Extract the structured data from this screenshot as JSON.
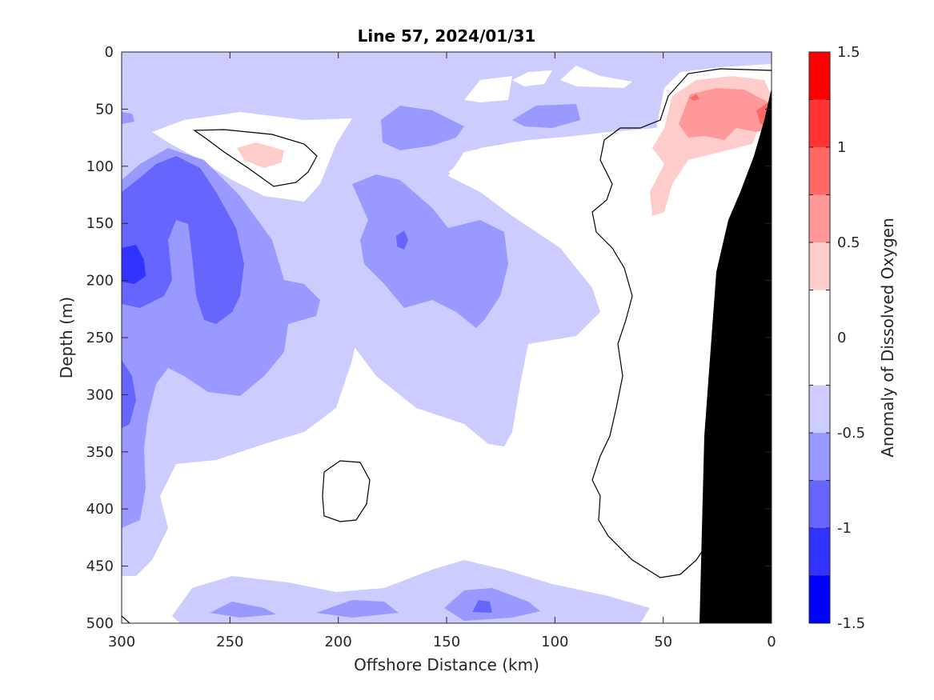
{
  "chart_data": {
    "type": "contour",
    "title": "Line 57, 2024/01/31",
    "xlabel": "Offshore Distance (km)",
    "ylabel": "Depth (m)",
    "xlim": [
      300,
      0
    ],
    "ylim": [
      0,
      500
    ],
    "x_reversed": true,
    "y_reversed": true,
    "xticks": [
      "300",
      "250",
      "200",
      "150",
      "100",
      "50",
      "0"
    ],
    "yticks": [
      "0",
      "50",
      "100",
      "150",
      "200",
      "250",
      "300",
      "350",
      "400",
      "450",
      "500"
    ],
    "colorbar": {
      "label": "Anomaly of Dissolved Oxygen",
      "range": [
        -1.5,
        1.5
      ],
      "ticks": [
        "1.5",
        "1",
        "0.5",
        "0",
        "-0.5",
        "-1",
        "-1.5"
      ],
      "levels": [
        -1.5,
        -1.25,
        -1.0,
        -0.75,
        -0.5,
        -0.25,
        0.25,
        0.5,
        0.75,
        1.0,
        1.25,
        1.5
      ],
      "colors": [
        "#0000ff",
        "#3333ff",
        "#6666ff",
        "#9999ff",
        "#ccccff",
        "#ffffff",
        "#ffcccc",
        "#ff9999",
        "#ff6666",
        "#ff3333",
        "#ff0000"
      ]
    },
    "contour_line_level": 0,
    "bathymetry_color": "#000000"
  }
}
